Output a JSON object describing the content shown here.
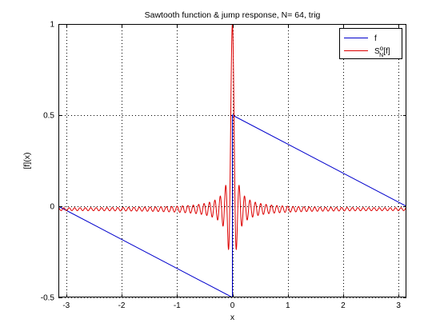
{
  "chart_data": {
    "type": "line",
    "title": "Sawtooth function & jump response, N= 64, trig",
    "xlabel": "x",
    "ylabel": "[f](x)",
    "xlim": [
      -3.1416,
      3.1416
    ],
    "ylim": [
      -0.5,
      1.0
    ],
    "xticks": [
      -3,
      -2,
      -1,
      0,
      1,
      2,
      3
    ],
    "yticks": [
      -0.5,
      0,
      0.5,
      1
    ],
    "xtick_labels": [
      "-3",
      "-2",
      "-1",
      "0",
      "1",
      "2",
      "3"
    ],
    "ytick_labels": [
      "-0.5",
      "0",
      "0.5",
      "1"
    ],
    "grid": true,
    "legend_position": "top-right",
    "series": [
      {
        "name": "f",
        "legend_label": "f",
        "color": "#0000cc",
        "description": "sawtooth: linear from 0 at -pi down to -0.5 at 0-, jumps to 0.5 at 0+, linear down to 0 at pi",
        "x": [
          -3.1416,
          0.0,
          0.0,
          3.1416
        ],
        "y": [
          0.0,
          -0.5,
          0.5,
          0.0
        ]
      },
      {
        "name": "S_N^o[f]",
        "legend_label_main": "S",
        "legend_label_sup": "o",
        "legend_label_sub": "N",
        "legend_label_tail": "[f]",
        "color": "#dd0000",
        "description": "jump response: near -0.016 with small ripple, sharp peak of about 1.0 at x = 0",
        "baseline": -0.016,
        "peak": 1.0,
        "peak_x": 0.0,
        "N": 64
      }
    ]
  }
}
